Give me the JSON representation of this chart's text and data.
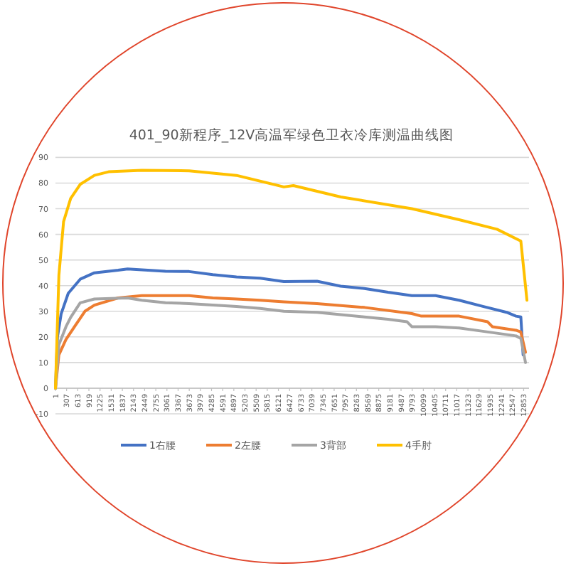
{
  "chart_data": {
    "type": "line",
    "title": "401_90新程序_12V高温军绿色卫衣冷库测温曲线图",
    "xlim": [
      1,
      13000
    ],
    "xticks": [
      1,
      307,
      613,
      919,
      1225,
      1531,
      1837,
      2143,
      2449,
      2755,
      3061,
      3367,
      3673,
      3979,
      4285,
      4591,
      4897,
      5203,
      5509,
      5815,
      6121,
      6427,
      6733,
      7039,
      7345,
      7651,
      7957,
      8263,
      8569,
      8875,
      9181,
      9487,
      9793,
      10099,
      10405,
      10711,
      11017,
      11323,
      11629,
      11935,
      12241,
      12547,
      12853
    ],
    "ylim": [
      -10,
      90
    ],
    "yticks": [
      -10,
      0,
      10,
      20,
      30,
      40,
      50,
      60,
      70,
      80,
      90
    ],
    "grid": "y",
    "legend": "bottom",
    "series": [
      {
        "name": "1右腰",
        "color": "#4472c4",
        "x": [
          1,
          56,
          157,
          352,
          680,
          1070,
          1718,
          1980,
          3021,
          3670,
          4320,
          4970,
          5620,
          6270,
          7180,
          7832,
          8483,
          9131,
          9783,
          10434,
          11082,
          11733,
          12385,
          12643,
          12775,
          12838
        ],
        "values": [
          0,
          20,
          29,
          37,
          42.5,
          45,
          46,
          46.5,
          45.6,
          45.5,
          44.3,
          43.4,
          42.9,
          41.6,
          41.7,
          39.8,
          38.9,
          37.4,
          36.1,
          36.1,
          34.3,
          31.9,
          29.6,
          28.1,
          27.8,
          13
        ]
      },
      {
        "name": "2左腰",
        "color": "#ed7d31",
        "x": [
          1,
          95,
          290,
          547,
          809,
          1070,
          1718,
          2370,
          3670,
          4320,
          4970,
          5620,
          6270,
          7180,
          8483,
          9783,
          10044,
          11082,
          11863,
          11993,
          12643,
          12775,
          12903
        ],
        "values": [
          0,
          13,
          19,
          24.5,
          30,
          32.4,
          35.2,
          36.1,
          36.1,
          35.2,
          34.8,
          34.3,
          33.7,
          33,
          31.5,
          29.1,
          28.1,
          28.1,
          25.9,
          24,
          22.6,
          21.9,
          14
        ]
      },
      {
        "name": "3背部",
        "color": "#a5a5a5",
        "x": [
          1,
          95,
          290,
          418,
          680,
          1070,
          1980,
          2370,
          3021,
          3670,
          4320,
          4970,
          5620,
          6270,
          7180,
          8483,
          9131,
          9652,
          9783,
          10434,
          11082,
          11733,
          12643,
          12775,
          12903
        ],
        "values": [
          0,
          17,
          24,
          27.6,
          33.3,
          34.8,
          35.2,
          34.3,
          33.3,
          33,
          32.4,
          31.9,
          31.1,
          30,
          29.6,
          27.8,
          26.9,
          25.9,
          24,
          24,
          23.5,
          22.2,
          20.4,
          19.4,
          10
        ]
      },
      {
        "name": "4手肘",
        "color": "#ffc000",
        "x": [
          1,
          95,
          224,
          418,
          680,
          1070,
          1460,
          2370,
          3670,
          4970,
          6270,
          6532,
          7832,
          9783,
          11082,
          12120,
          12775,
          12943
        ],
        "values": [
          0,
          44,
          65,
          74,
          79.5,
          83,
          84.4,
          85,
          84.8,
          83,
          78.5,
          79,
          74.6,
          70,
          65.7,
          62,
          57.4,
          34.3
        ]
      }
    ]
  }
}
